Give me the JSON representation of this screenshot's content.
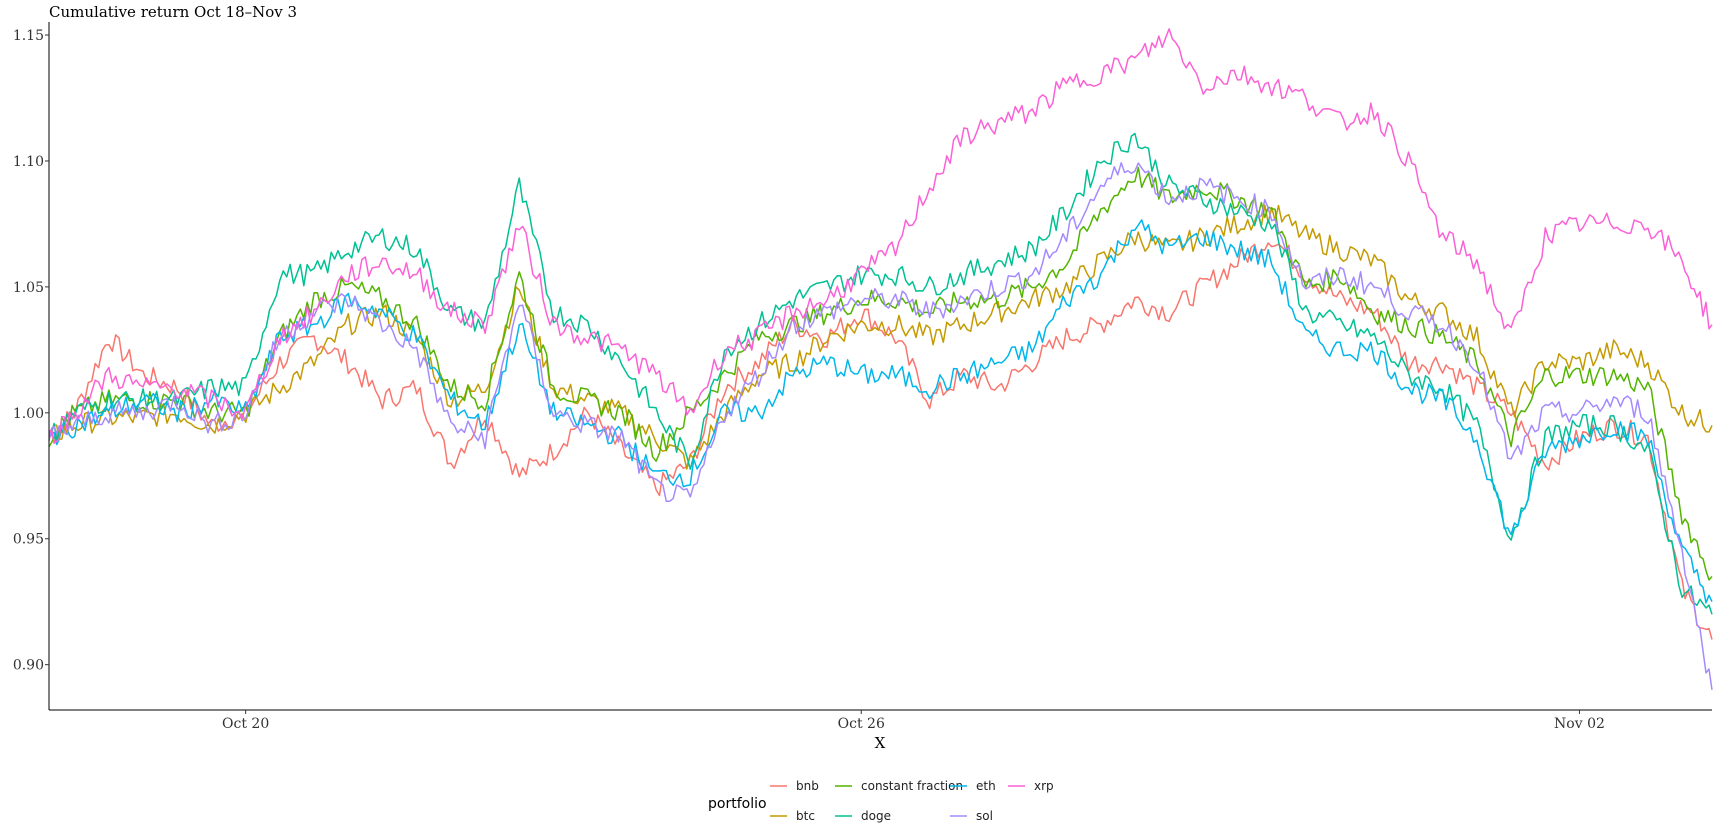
{
  "chart_data": {
    "type": "line",
    "title": "Cumulative return Oct 18–Nov 3",
    "xlabel": "X",
    "ylabel": "",
    "x_start": "2025-10-18T02:00",
    "x_end": "2025-11-03T07:00",
    "ylim": [
      0.882,
      1.152
    ],
    "y_ticks": [
      "0.90",
      "0.95",
      "1.00",
      "1.05",
      "1.10",
      "1.15"
    ],
    "x_ticks": [
      {
        "label": "Oct 20",
        "date": "2025-10-20"
      },
      {
        "label": "Oct 26",
        "date": "2025-10-26"
      },
      {
        "label": "Nov 02",
        "date": "2025-11-02"
      }
    ],
    "grid": false,
    "legend": {
      "title": "portfolio",
      "position": "bottom"
    },
    "x": [
      "2025-10-18T02:00",
      "2025-10-18T08:00",
      "2025-10-18T16:00",
      "2025-10-19T00:00",
      "2025-10-19T08:00",
      "2025-10-19T16:00",
      "2025-10-20T00:00",
      "2025-10-20T08:00",
      "2025-10-20T16:00",
      "2025-10-21T00:00",
      "2025-10-21T08:00",
      "2025-10-21T16:00",
      "2025-10-22T00:00",
      "2025-10-22T08:00",
      "2025-10-22T16:00",
      "2025-10-23T00:00",
      "2025-10-23T08:00",
      "2025-10-23T16:00",
      "2025-10-24T00:00",
      "2025-10-24T08:00",
      "2025-10-24T16:00",
      "2025-10-25T00:00",
      "2025-10-25T08:00",
      "2025-10-25T16:00",
      "2025-10-26T00:00",
      "2025-10-26T08:00",
      "2025-10-26T16:00",
      "2025-10-27T00:00",
      "2025-10-27T08:00",
      "2025-10-27T16:00",
      "2025-10-28T00:00",
      "2025-10-28T08:00",
      "2025-10-28T16:00",
      "2025-10-29T00:00",
      "2025-10-29T08:00",
      "2025-10-29T16:00",
      "2025-10-30T00:00",
      "2025-10-30T08:00",
      "2025-10-30T16:00",
      "2025-10-31T00:00",
      "2025-10-31T08:00",
      "2025-10-31T16:00",
      "2025-11-01T00:00",
      "2025-11-01T08:00",
      "2025-11-01T16:00",
      "2025-11-02T00:00",
      "2025-11-02T08:00",
      "2025-11-02T16:00",
      "2025-11-03T00:00",
      "2025-11-03T07:00"
    ],
    "series": [
      {
        "name": "bnb",
        "color": "#F8766D",
        "values": [
          0.99,
          1.0,
          1.03,
          1.015,
          1.01,
          0.995,
          1.0,
          1.02,
          1.03,
          1.02,
          1.005,
          1.01,
          0.98,
          1.0,
          0.975,
          0.985,
          1.0,
          0.985,
          0.97,
          0.98,
          1.01,
          1.02,
          1.035,
          1.03,
          1.04,
          1.03,
          1.005,
          1.015,
          1.01,
          1.02,
          1.03,
          1.035,
          1.045,
          1.04,
          1.05,
          1.06,
          1.07,
          1.055,
          1.045,
          1.04,
          1.02,
          1.02,
          1.01,
          1.0,
          0.98,
          0.99,
          0.995,
          0.99,
          0.93,
          0.91
        ]
      },
      {
        "name": "btc",
        "color": "#C49A00",
        "values": [
          0.99,
          0.995,
          0.998,
          0.998,
          1.0,
          0.995,
          1.0,
          1.01,
          1.02,
          1.035,
          1.04,
          1.03,
          1.005,
          1.01,
          1.05,
          1.01,
          1.005,
          1.0,
          0.99,
          0.98,
          1.0,
          1.015,
          1.02,
          1.03,
          1.035,
          1.035,
          1.03,
          1.035,
          1.04,
          1.045,
          1.05,
          1.06,
          1.07,
          1.065,
          1.07,
          1.075,
          1.08,
          1.07,
          1.065,
          1.06,
          1.045,
          1.04,
          1.03,
          1.0,
          1.02,
          1.02,
          1.025,
          1.02,
          1.0,
          0.995
        ]
      },
      {
        "name": "constant fraction",
        "color": "#53B400",
        "values": [
          0.99,
          1.0,
          1.005,
          1.005,
          1.005,
          1.0,
          1.0,
          1.03,
          1.045,
          1.05,
          1.045,
          1.035,
          1.01,
          1.005,
          1.055,
          1.01,
          1.005,
          1.0,
          0.985,
          1.0,
          1.015,
          1.03,
          1.035,
          1.04,
          1.045,
          1.045,
          1.04,
          1.045,
          1.045,
          1.05,
          1.06,
          1.08,
          1.095,
          1.085,
          1.09,
          1.085,
          1.08,
          1.05,
          1.055,
          1.04,
          1.035,
          1.03,
          1.02,
          0.99,
          1.015,
          1.015,
          1.015,
          1.01,
          0.96,
          0.935
        ]
      },
      {
        "name": "doge",
        "color": "#00C094",
        "values": [
          0.99,
          1.0,
          1.005,
          1.005,
          1.005,
          1.01,
          1.01,
          1.055,
          1.055,
          1.065,
          1.07,
          1.065,
          1.04,
          1.035,
          1.09,
          1.04,
          1.035,
          1.02,
          1.0,
          0.98,
          1.025,
          1.035,
          1.045,
          1.05,
          1.055,
          1.055,
          1.05,
          1.055,
          1.06,
          1.065,
          1.08,
          1.1,
          1.11,
          1.09,
          1.085,
          1.08,
          1.075,
          1.04,
          1.035,
          1.03,
          1.015,
          1.01,
          0.995,
          0.95,
          0.99,
          0.995,
          0.995,
          0.985,
          0.93,
          0.92
        ]
      },
      {
        "name": "eth",
        "color": "#00B6EB",
        "values": [
          0.99,
          0.995,
          1.0,
          1.005,
          1.0,
          1.005,
          1.0,
          1.03,
          1.035,
          1.045,
          1.04,
          1.03,
          1.005,
          0.995,
          1.035,
          1.0,
          0.995,
          0.99,
          0.975,
          0.975,
          1.0,
          1.0,
          1.015,
          1.02,
          1.015,
          1.015,
          1.01,
          1.015,
          1.02,
          1.025,
          1.045,
          1.055,
          1.075,
          1.065,
          1.07,
          1.065,
          1.06,
          1.03,
          1.025,
          1.025,
          1.01,
          1.005,
          0.99,
          0.95,
          0.985,
          0.99,
          0.995,
          0.99,
          0.945,
          0.925
        ]
      },
      {
        "name": "sol",
        "color": "#A58AFF",
        "values": [
          0.99,
          0.995,
          1.0,
          1.0,
          1.005,
          0.995,
          1.0,
          1.03,
          1.04,
          1.045,
          1.035,
          1.025,
          0.995,
          0.99,
          1.045,
          1.0,
          0.995,
          0.99,
          0.97,
          0.965,
          1.0,
          1.015,
          1.035,
          1.04,
          1.045,
          1.045,
          1.04,
          1.045,
          1.05,
          1.055,
          1.07,
          1.09,
          1.1,
          1.085,
          1.09,
          1.085,
          1.08,
          1.05,
          1.055,
          1.05,
          1.04,
          1.035,
          1.02,
          0.98,
          1.0,
          1.0,
          1.005,
          1.0,
          0.945,
          0.89
        ]
      },
      {
        "name": "xrp",
        "color": "#FB61D7",
        "values": [
          0.99,
          1.0,
          1.015,
          1.01,
          1.01,
          1.005,
          1.0,
          1.03,
          1.04,
          1.055,
          1.06,
          1.055,
          1.04,
          1.035,
          1.075,
          1.035,
          1.03,
          1.025,
          1.015,
          1.0,
          1.025,
          1.03,
          1.04,
          1.045,
          1.055,
          1.065,
          1.09,
          1.11,
          1.115,
          1.12,
          1.13,
          1.135,
          1.14,
          1.15,
          1.13,
          1.135,
          1.13,
          1.125,
          1.115,
          1.12,
          1.1,
          1.07,
          1.06,
          1.03,
          1.07,
          1.075,
          1.075,
          1.075,
          1.06,
          1.035
        ]
      }
    ]
  }
}
